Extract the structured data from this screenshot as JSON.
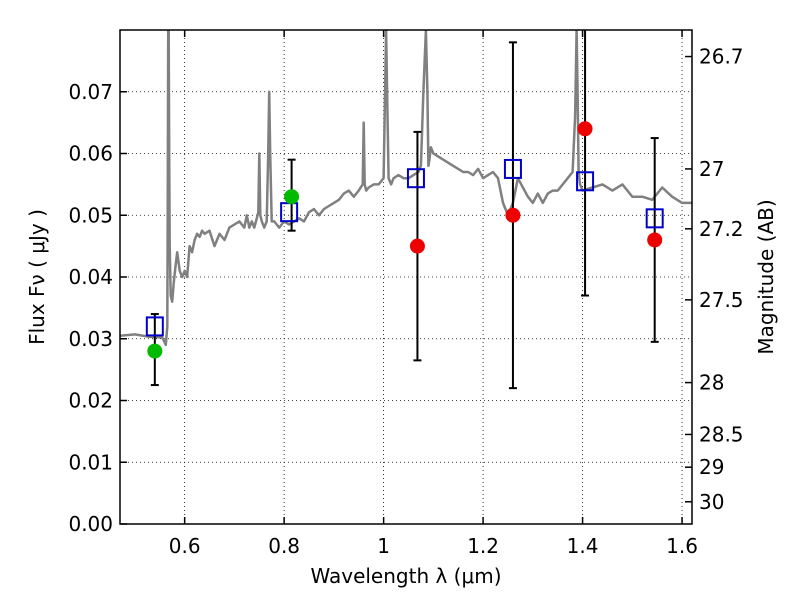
{
  "chart_data": {
    "type": "scatter",
    "xlabel": "Wavelength  λ (μm)",
    "ylabel": "Flux  Fν  ( μJy )",
    "ylabel_right": "Magnitude (AB)",
    "xlim": [
      0.47,
      1.62
    ],
    "ylim": [
      0.0,
      0.08
    ],
    "grid": true,
    "x_ticks": [
      0.6,
      0.8,
      1.0,
      1.2,
      1.4,
      1.6
    ],
    "x_tick_labels": [
      "0.6",
      "0.8",
      "1",
      "1.2",
      "1.4",
      "1.6"
    ],
    "y_ticks": [
      0.0,
      0.01,
      0.02,
      0.03,
      0.04,
      0.05,
      0.06,
      0.07
    ],
    "y_tick_labels": [
      "0.00",
      "0.01",
      "0.02",
      "0.03",
      "0.04",
      "0.05",
      "0.06",
      "0.07"
    ],
    "right_ticks": [
      {
        "flux": 0.0757,
        "label": "26.7"
      },
      {
        "flux": 0.0575,
        "label": "27"
      },
      {
        "flux": 0.0478,
        "label": "27.2"
      },
      {
        "flux": 0.0363,
        "label": "27.5"
      },
      {
        "flux": 0.0229,
        "label": "28"
      },
      {
        "flux": 0.0145,
        "label": "28.5"
      },
      {
        "flux": 0.0092,
        "label": "29"
      },
      {
        "flux": 0.0036,
        "label": "30"
      }
    ],
    "colors": {
      "template": "#808080",
      "model_squares": "#0000cc",
      "detections": "#00bb00",
      "non_detections": "#ee0000",
      "errorbars": "#000000",
      "grid": "#000000"
    },
    "series": [
      {
        "marker": "square",
        "x": [
          0.54,
          0.81,
          1.065,
          1.26,
          1.405,
          1.545
        ],
        "y": [
          0.032,
          0.0505,
          0.056,
          0.0575,
          0.0555,
          0.0495
        ]
      },
      {
        "marker": "circle-green",
        "x": [
          0.54,
          0.815
        ],
        "y": [
          0.028,
          0.053
        ],
        "yerr_low": [
          0.0225,
          0.0475
        ],
        "yerr_high": [
          0.034,
          0.059
        ]
      },
      {
        "marker": "circle-red",
        "x": [
          1.068,
          1.26,
          1.405,
          1.545
        ],
        "y": [
          0.045,
          0.05,
          0.064,
          0.046
        ],
        "yerr_low": [
          0.0265,
          0.022,
          0.037,
          0.0295
        ],
        "yerr_high": [
          0.0635,
          0.078,
          0.08,
          0.0625
        ]
      }
    ],
    "template_spectrum": {
      "x": [
        0.47,
        0.5,
        0.53,
        0.555,
        0.562,
        0.565,
        0.566,
        0.567,
        0.568,
        0.569,
        0.57,
        0.572,
        0.575,
        0.578,
        0.582,
        0.585,
        0.59,
        0.595,
        0.6,
        0.605,
        0.61,
        0.615,
        0.62,
        0.625,
        0.63,
        0.635,
        0.64,
        0.65,
        0.66,
        0.67,
        0.68,
        0.69,
        0.7,
        0.71,
        0.72,
        0.725,
        0.73,
        0.735,
        0.74,
        0.745,
        0.748,
        0.75,
        0.752,
        0.755,
        0.76,
        0.765,
        0.768,
        0.77,
        0.772,
        0.775,
        0.78,
        0.79,
        0.8,
        0.81,
        0.82,
        0.83,
        0.84,
        0.85,
        0.86,
        0.87,
        0.88,
        0.89,
        0.9,
        0.91,
        0.92,
        0.93,
        0.94,
        0.95,
        0.958,
        0.96,
        0.962,
        0.965,
        0.97,
        0.98,
        0.99,
        1.0,
        1.003,
        1.005,
        1.007,
        1.01,
        1.015,
        1.02,
        1.03,
        1.04,
        1.05,
        1.06,
        1.07,
        1.075,
        1.08,
        1.085,
        1.088,
        1.09,
        1.092,
        1.095,
        1.1,
        1.11,
        1.12,
        1.13,
        1.14,
        1.15,
        1.16,
        1.17,
        1.18,
        1.19,
        1.2,
        1.21,
        1.22,
        1.23,
        1.24,
        1.25,
        1.26,
        1.27,
        1.28,
        1.29,
        1.3,
        1.31,
        1.32,
        1.33,
        1.34,
        1.35,
        1.36,
        1.37,
        1.38,
        1.385,
        1.388,
        1.39,
        1.392,
        1.395,
        1.4,
        1.42,
        1.44,
        1.46,
        1.48,
        1.5,
        1.52,
        1.54,
        1.56,
        1.58,
        1.6,
        1.62
      ],
      "y": [
        0.0305,
        0.0307,
        0.0303,
        0.0302,
        0.029,
        0.032,
        0.05,
        0.08,
        0.08,
        0.06,
        0.045,
        0.037,
        0.036,
        0.039,
        0.042,
        0.044,
        0.041,
        0.04,
        0.041,
        0.04,
        0.045,
        0.044,
        0.046,
        0.047,
        0.0465,
        0.0475,
        0.047,
        0.0475,
        0.045,
        0.047,
        0.046,
        0.048,
        0.0485,
        0.049,
        0.048,
        0.05,
        0.048,
        0.049,
        0.048,
        0.0495,
        0.0505,
        0.06,
        0.05,
        0.049,
        0.048,
        0.049,
        0.06,
        0.07,
        0.06,
        0.049,
        0.049,
        0.048,
        0.049,
        0.0485,
        0.049,
        0.0495,
        0.049,
        0.0505,
        0.051,
        0.05,
        0.051,
        0.0515,
        0.052,
        0.0525,
        0.0535,
        0.054,
        0.053,
        0.054,
        0.055,
        0.065,
        0.055,
        0.054,
        0.0545,
        0.055,
        0.055,
        0.056,
        0.07,
        0.08,
        0.07,
        0.056,
        0.055,
        0.056,
        0.0565,
        0.056,
        0.056,
        0.0565,
        0.057,
        0.058,
        0.07,
        0.08,
        0.07,
        0.058,
        0.059,
        0.061,
        0.06,
        0.0595,
        0.059,
        0.0585,
        0.058,
        0.0575,
        0.057,
        0.057,
        0.0565,
        0.0575,
        0.056,
        0.0565,
        0.057,
        0.056,
        0.052,
        0.05,
        0.052,
        0.056,
        0.0545,
        0.053,
        0.052,
        0.0535,
        0.052,
        0.0535,
        0.054,
        0.054,
        0.055,
        0.056,
        0.057,
        0.066,
        0.08,
        0.07,
        0.057,
        0.055,
        0.054,
        0.0545,
        0.055,
        0.054,
        0.055,
        0.053,
        0.053,
        0.0525,
        0.0545,
        0.053,
        0.052,
        0.052
      ]
    }
  }
}
